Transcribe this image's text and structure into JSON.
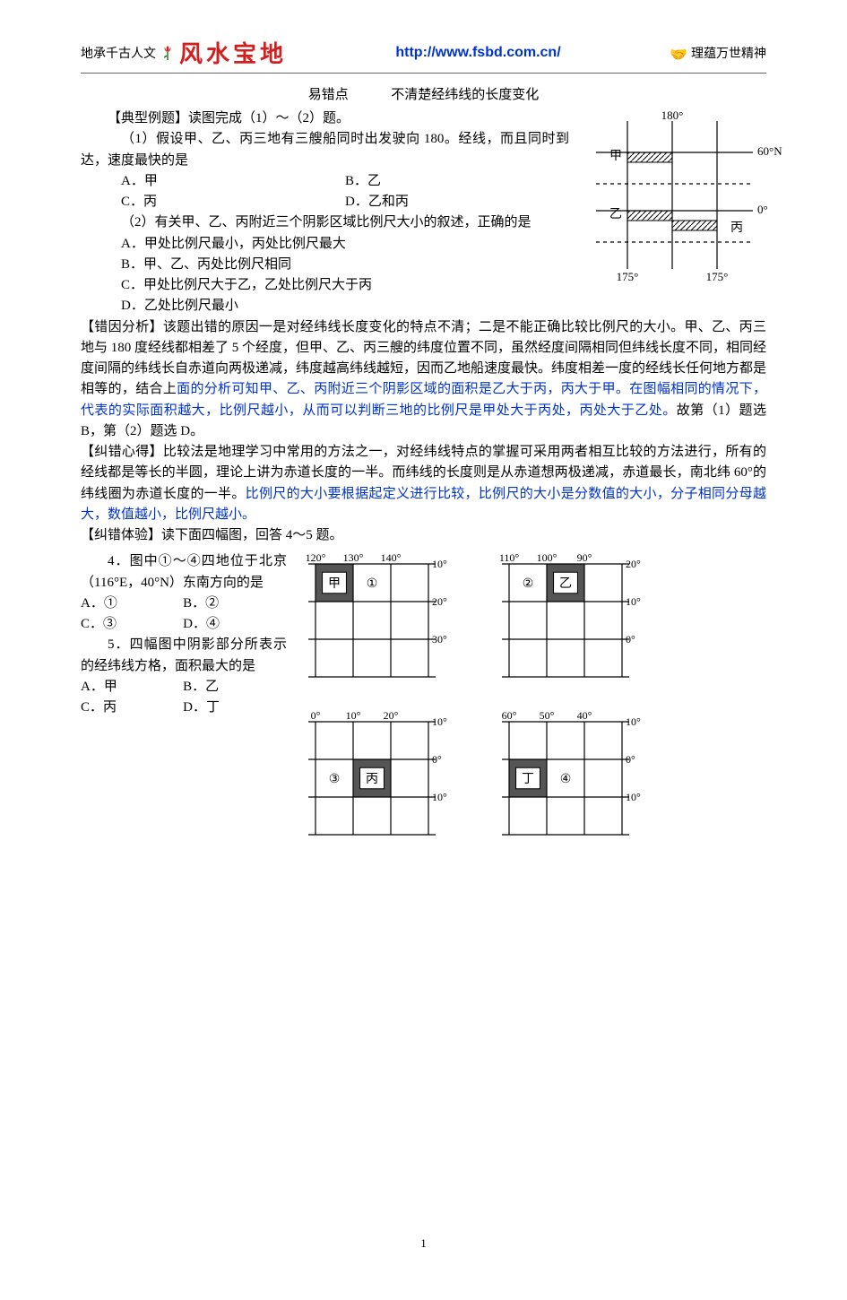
{
  "header": {
    "left_motto": "地承千古人文",
    "logo": "风水宝地",
    "url": "http://www.fsbd.com.cn/",
    "right_motto": "理蕴万世精神"
  },
  "title": {
    "a": "易错点",
    "b": "不清楚经纬线的长度变化"
  },
  "example_intro": "【典型例题】读图完成（1）～（2）题。",
  "q1": {
    "stem": "（1）假设甲、乙、丙三地有三艘船同时出发驶向 180。经线，而且同时到达，速度最快的是",
    "A": "A．甲",
    "B": "B．乙",
    "C": "C．丙",
    "D": "D．乙和丙"
  },
  "q2": {
    "stem": "（2）有关甲、乙、丙附近三个阴影区域比例尺大小的叙述，正确的是",
    "A": "A．甲处比例尺最小，丙处比例尺最大",
    "B": "B．甲、乙、丙处比例尺相同",
    "C": "C．甲处比例尺大于乙，乙处比例尺大于丙",
    "D": "D．乙处比例尺最小"
  },
  "fig1": {
    "lon_top": "180°",
    "lat_top": "60°N",
    "lat_mid": "0°",
    "lon_bl": "175°",
    "lon_br": "175°",
    "lbl_jia": "甲",
    "lbl_yi": "乙",
    "lbl_bing": "丙",
    "colors": {
      "line": "#000000",
      "hatch": "#000000",
      "text": "#000000"
    }
  },
  "analysis_label": "【错因分析】",
  "analysis_black1": "该题出错的原因一是对经纬线长度变化的特点不清；二是不能正确比较比例尺的大小。甲、乙、丙三地与 180 度经线都相差了 5 个经度，但甲、乙、丙三艘的纬度位置不同，虽然经度间隔相同但纬线长度不同，相同经度间隔的纬线长自赤道向两极递减，纬度越高纬线越短，因而乙地船速度最快。纬度相差一度的经线长任何地方都是相等的，结合上",
  "analysis_blue": "面的分析可知甲、乙、丙附近三个阴影区域的面积是乙大于丙，丙大于甲。在图幅相同的情况下，代表的实际面积越大，比例尺越小，从而可以判断三地的比例尺是甲处大于丙处，丙处大于乙处。",
  "analysis_black2": "故第（1）题选 B，第（2）题选 D。",
  "tips_label": "【纠错心得】",
  "tips_black1": "比较法是地理学习中常用的方法之一，对经纬线特点的掌握可采用两者相互比较的方法进行，所有的经线都是等长的半圆，理论上讲为赤道长度的一半。而纬线的长度则是从赤道想两极递减，赤道最长，南北纬 60°的纬线圈为赤道长度的一半。",
  "tips_blue": "比例尺的大小要根据起定义进行比较，比例尺的大小是分数值的大小，分子相同分母越大，数值越小，比例尺越小。",
  "practice_label": "【纠错体验】读下面四幅图，回答 4～5 题。",
  "q4": {
    "stem": "4．图中①～④四地位于北京（116°E，40°N）东南方向的是",
    "A": "A．①",
    "B": "B．②",
    "C": "C．③",
    "D": "D．④"
  },
  "q5": {
    "stem": "5．四幅图中阴影部分所表示的经纬线方格，面积最大的是",
    "A": "A．甲",
    "B": "B．乙",
    "C": "C．丙",
    "D": "D．丁"
  },
  "mini": {
    "a": {
      "lons": [
        "120°",
        "130°",
        "140°"
      ],
      "lats": [
        "10°",
        "20°",
        "30°"
      ],
      "box": "甲",
      "mark": "①",
      "shaded_cell": [
        0,
        0
      ]
    },
    "b": {
      "lons": [
        "110°",
        "100°",
        "90°"
      ],
      "lats": [
        "20°",
        "10°",
        "0°"
      ],
      "box": "乙",
      "mark": "②",
      "shaded_cell": [
        1,
        0
      ]
    },
    "c": {
      "lons": [
        "0°",
        "10°",
        "20°"
      ],
      "lats": [
        "10°",
        "0°",
        "10°"
      ],
      "box": "丙",
      "mark": "③",
      "shaded_cell": [
        1,
        1
      ]
    },
    "d": {
      "lons": [
        "60°",
        "50°",
        "40°"
      ],
      "lats": [
        "10°",
        "0°",
        "10°"
      ],
      "box": "丁",
      "mark": "④",
      "shaded_cell": [
        0,
        1
      ]
    },
    "style": {
      "line": "#000000",
      "fill": "#555555",
      "text": "#000000",
      "cell": 42,
      "font": 12
    }
  },
  "page_number": "1"
}
